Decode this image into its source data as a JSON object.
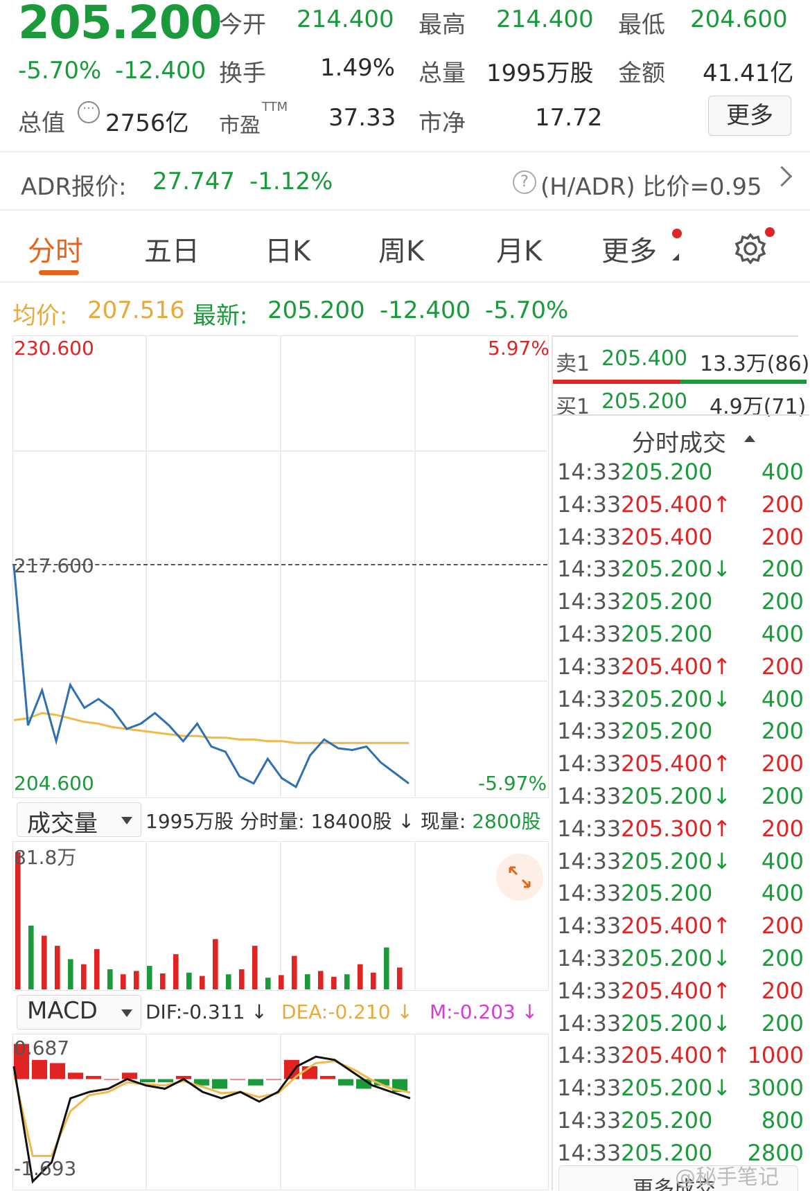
{
  "quote": {
    "price": "205.200",
    "change_pct": "-5.70%",
    "change": "-12.400",
    "open_label": "今开",
    "open": "214.400",
    "high_label": "最高",
    "high": "214.400",
    "low_label": "最低",
    "low": "204.600",
    "turnover_label": "换手",
    "turnover": "1.49%",
    "volume_label": "总量",
    "volume": "1995万股",
    "amount_label": "金额",
    "amount": "41.41亿",
    "mktcap_label": "总值",
    "mktcap": "2756亿",
    "pe_label": "市盈",
    "pe_sup": "TTM",
    "pe": "37.33",
    "pb_label": "市净",
    "pb": "17.72",
    "more_label": "更多"
  },
  "adr": {
    "label": "ADR报价:",
    "price": "27.747",
    "change_pct": "-1.12%",
    "ratio": "(H/ADR) 比价=0.95"
  },
  "tabs": [
    "分时",
    "五日",
    "日K",
    "周K",
    "月K",
    "更多"
  ],
  "active_tab": 0,
  "chart_header": {
    "avg_label": "均价:",
    "avg": "207.516",
    "latest_label": "最新:",
    "latest": "205.200",
    "change": "-12.400",
    "change_pct": "-5.70%"
  },
  "price_axis": {
    "top": "230.600",
    "mid": "217.600",
    "bottom": "204.600",
    "top_pct": "5.97%",
    "bottom_pct": "-5.97%"
  },
  "volume_panel": {
    "selector": "成交量",
    "total": "1995万股",
    "minute_label": "分时量:",
    "minute": "18400股",
    "current_label": "现量:",
    "current": "2800股",
    "max_label": "81.8万"
  },
  "macd_panel": {
    "selector": "MACD",
    "dif": "DIF:-0.311",
    "dea": "DEA:-0.210",
    "m": "M:-0.203",
    "top": "0.687",
    "bottom": "-1.693"
  },
  "order_book": {
    "sell_label": "卖1",
    "sell_price": "205.400",
    "sell_vol": "13.3万(86)",
    "buy_label": "买1",
    "buy_price": "205.200",
    "buy_vol": "4.9万(71)"
  },
  "ticks_title": "分时成交",
  "ticks": [
    {
      "time": "14:33",
      "price": "205.200",
      "dir": "",
      "vol": "400",
      "color": "green"
    },
    {
      "time": "14:33",
      "price": "205.400",
      "dir": "↑",
      "vol": "200",
      "color": "red"
    },
    {
      "time": "14:33",
      "price": "205.400",
      "dir": "",
      "vol": "200",
      "color": "red"
    },
    {
      "time": "14:33",
      "price": "205.200",
      "dir": "↓",
      "vol": "200",
      "color": "green"
    },
    {
      "time": "14:33",
      "price": "205.200",
      "dir": "",
      "vol": "200",
      "color": "green"
    },
    {
      "time": "14:33",
      "price": "205.200",
      "dir": "",
      "vol": "400",
      "color": "green"
    },
    {
      "time": "14:33",
      "price": "205.400",
      "dir": "↑",
      "vol": "200",
      "color": "red"
    },
    {
      "time": "14:33",
      "price": "205.200",
      "dir": "↓",
      "vol": "400",
      "color": "green"
    },
    {
      "time": "14:33",
      "price": "205.200",
      "dir": "",
      "vol": "200",
      "color": "green"
    },
    {
      "time": "14:33",
      "price": "205.400",
      "dir": "↑",
      "vol": "200",
      "color": "red"
    },
    {
      "time": "14:33",
      "price": "205.200",
      "dir": "↓",
      "vol": "200",
      "color": "green"
    },
    {
      "time": "14:33",
      "price": "205.300",
      "dir": "↑",
      "vol": "200",
      "color": "red"
    },
    {
      "time": "14:33",
      "price": "205.200",
      "dir": "↓",
      "vol": "400",
      "color": "green"
    },
    {
      "time": "14:33",
      "price": "205.200",
      "dir": "",
      "vol": "400",
      "color": "green"
    },
    {
      "time": "14:33",
      "price": "205.400",
      "dir": "↑",
      "vol": "200",
      "color": "red"
    },
    {
      "time": "14:33",
      "price": "205.200",
      "dir": "↓",
      "vol": "200",
      "color": "green"
    },
    {
      "time": "14:33",
      "price": "205.400",
      "dir": "↑",
      "vol": "200",
      "color": "red"
    },
    {
      "time": "14:33",
      "price": "205.200",
      "dir": "↓",
      "vol": "200",
      "color": "green"
    },
    {
      "time": "14:33",
      "price": "205.400",
      "dir": "↑",
      "vol": "1000",
      "color": "red"
    },
    {
      "time": "14:33",
      "price": "205.200",
      "dir": "↓",
      "vol": "3000",
      "color": "green"
    },
    {
      "time": "14:33",
      "price": "205.200",
      "dir": "",
      "vol": "800",
      "color": "green"
    },
    {
      "time": "14:33",
      "price": "205.200",
      "dir": "",
      "vol": "2800",
      "color": "green"
    }
  ],
  "more_trades": "更多成交",
  "watermark": "@秘手笔记",
  "colors": {
    "up": "#e02424",
    "down": "#1a9a3a",
    "price_line": "#2f6fb3",
    "avg_line": "#f0b94a",
    "accent": "#e8631a"
  },
  "chart_data": [
    {
      "type": "line",
      "ylim": [
        204.6,
        230.6
      ],
      "reference": 217.6,
      "series": [
        {
          "name": "最新",
          "values": [
            217.6,
            208.5,
            210.5,
            207.6,
            210.8,
            209.5,
            210.0,
            209.4,
            208.3,
            208.6,
            209.2,
            208.5,
            207.6,
            208.6,
            207.3,
            207.0,
            205.6,
            205.2,
            206.6,
            205.5,
            205.0,
            206.8,
            207.7,
            207.2,
            207.1,
            207.3,
            206.4,
            205.8,
            205.2
          ]
        },
        {
          "name": "均价",
          "values": [
            208.8,
            208.9,
            209.2,
            209.1,
            208.9,
            208.7,
            208.6,
            208.4,
            208.3,
            208.2,
            208.1,
            208.0,
            207.9,
            207.9,
            207.8,
            207.8,
            207.7,
            207.7,
            207.6,
            207.6,
            207.5,
            207.5,
            207.5,
            207.5,
            207.5,
            207.5,
            207.5,
            207.5,
            207.5
          ]
        }
      ]
    },
    {
      "type": "bar",
      "title": "成交量",
      "ylim": [
        0,
        818000
      ],
      "values": [
        818000,
        380000,
        320000,
        260000,
        180000,
        150000,
        240000,
        120000,
        90000,
        110000,
        140000,
        95000,
        210000,
        100000,
        80000,
        300000,
        90000,
        120000,
        260000,
        70000,
        85000,
        200000,
        90000,
        110000,
        75000,
        90000,
        150000,
        100000,
        250000,
        130000
      ]
    },
    {
      "type": "bar",
      "title": "MACD",
      "ylim": [
        -1.693,
        0.687
      ],
      "dif": [
        0.2,
        -1.6,
        -1.3,
        -0.3,
        -0.2,
        -0.15,
        0.0,
        -0.1,
        -0.15,
        0.0,
        -0.2,
        -0.3,
        -0.2,
        -0.35,
        -0.2,
        0.2,
        0.35,
        0.3,
        0.1,
        -0.1,
        -0.2,
        -0.3
      ],
      "dea": [
        0.1,
        -1.2,
        -1.2,
        -0.5,
        -0.25,
        -0.2,
        -0.05,
        -0.08,
        -0.1,
        -0.03,
        -0.12,
        -0.22,
        -0.2,
        -0.28,
        -0.22,
        0.05,
        0.25,
        0.28,
        0.15,
        -0.02,
        -0.15,
        -0.21
      ],
      "hist": [
        0.55,
        0.3,
        0.25,
        0.1,
        0.05,
        0.0,
        0.1,
        -0.05,
        -0.05,
        0.05,
        -0.1,
        -0.15,
        0.0,
        -0.1,
        0.0,
        0.3,
        0.2,
        0.05,
        -0.1,
        -0.15,
        -0.1,
        -0.2
      ]
    }
  ]
}
